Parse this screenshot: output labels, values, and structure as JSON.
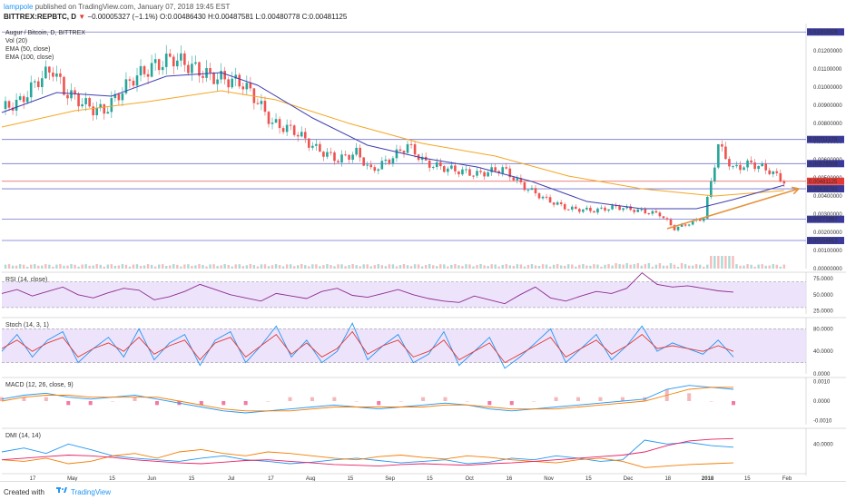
{
  "header": {
    "user": "lamppole",
    "published": "published on TradingView.com, January 07, 2018 19:45 EST",
    "symbol": "BITTREX:REPBTC, D",
    "change_arrow": "▼",
    "change": "−0.00005327 (−1.1%)",
    "o_label": "O:",
    "o": "0.00486430",
    "h_label": "H:",
    "h": "0.00487581",
    "l_label": "L:",
    "l": "0.00480778",
    "c_label": "C:",
    "c": "0.00481125"
  },
  "legend": {
    "name": "Augur / Bitcoin, D, BITTREX",
    "vol": "Vol (20)",
    "ema50": "EMA (50, close)",
    "ema100": "EMA (100, close)"
  },
  "footer": {
    "created": "Created with",
    "brand": "TradingView"
  },
  "colors": {
    "up": "#26a69a",
    "down": "#ef5350",
    "ema50": "#3f3fb0",
    "ema100": "#f5a623",
    "hline": "#5b5bc8",
    "price_label": "#e53935",
    "panel_fill": "#e6d9fb",
    "rsi": "#8e2a8e",
    "stoch_k": "#2196f3",
    "stoch_d": "#e53935",
    "macd": "#2196f3",
    "signal": "#f57c00",
    "dmi_plus": "#2196f3",
    "dmi_minus": "#f57c00",
    "adx": "#e91e63",
    "arrow": "#e69138"
  },
  "chart_data": {
    "type": "candlestick",
    "title": "Augur / Bitcoin, D, BITTREX",
    "symbol": "BITTREX:REPBTC",
    "last_close": 0.00481125,
    "y_axis_ticks": [
      "0.01200000",
      "0.01100000",
      "0.01000000",
      "0.00900000",
      "0.00800000",
      "0.00700000",
      "0.00600000",
      "0.00500000",
      "0.00400000",
      "0.00300000",
      "0.00200000",
      "0.00100000",
      "0.00000000"
    ],
    "ylim": [
      0,
      0.0135
    ],
    "x_axis_ticks": [
      "17",
      "May",
      "15",
      "Jun",
      "15",
      "Jul",
      "17",
      "Aug",
      "15",
      "Sep",
      "15",
      "Oct",
      "16",
      "Nov",
      "15",
      "Dec",
      "18",
      "2018",
      "15",
      "Feb"
    ],
    "horizontal_levels": [
      "0.01303928",
      "0.00711479",
      "0.00578508",
      "0.00481125",
      "0.00439781",
      "0.00271697",
      "0.00154813"
    ],
    "price_series": [
      {
        "t": 0,
        "v": 0.0088
      },
      {
        "t": 5,
        "v": 0.0092
      },
      {
        "t": 10,
        "v": 0.0104
      },
      {
        "t": 14,
        "v": 0.011
      },
      {
        "t": 17,
        "v": 0.0098
      },
      {
        "t": 20,
        "v": 0.0094
      },
      {
        "t": 25,
        "v": 0.0088
      },
      {
        "t": 28,
        "v": 0.0087
      },
      {
        "t": 32,
        "v": 0.0096
      },
      {
        "t": 36,
        "v": 0.0105
      },
      {
        "t": 42,
        "v": 0.0112
      },
      {
        "t": 47,
        "v": 0.0116
      },
      {
        "t": 52,
        "v": 0.0111
      },
      {
        "t": 57,
        "v": 0.0106
      },
      {
        "t": 62,
        "v": 0.0104
      },
      {
        "t": 66,
        "v": 0.0102
      },
      {
        "t": 70,
        "v": 0.0092
      },
      {
        "t": 74,
        "v": 0.008
      },
      {
        "t": 80,
        "v": 0.0076
      },
      {
        "t": 86,
        "v": 0.0066
      },
      {
        "t": 92,
        "v": 0.006
      },
      {
        "t": 97,
        "v": 0.0064
      },
      {
        "t": 101,
        "v": 0.0054
      },
      {
        "t": 106,
        "v": 0.006
      },
      {
        "t": 111,
        "v": 0.0068
      },
      {
        "t": 116,
        "v": 0.0058
      },
      {
        "t": 122,
        "v": 0.0055
      },
      {
        "t": 130,
        "v": 0.0052
      },
      {
        "t": 137,
        "v": 0.0055
      },
      {
        "t": 143,
        "v": 0.0045
      },
      {
        "t": 149,
        "v": 0.0038
      },
      {
        "t": 155,
        "v": 0.0033
      },
      {
        "t": 162,
        "v": 0.0032
      },
      {
        "t": 168,
        "v": 0.0034
      },
      {
        "t": 174,
        "v": 0.0032
      },
      {
        "t": 180,
        "v": 0.003
      },
      {
        "t": 184,
        "v": 0.0022
      },
      {
        "t": 188,
        "v": 0.0025
      },
      {
        "t": 192,
        "v": 0.0028
      },
      {
        "t": 196,
        "v": 0.0068
      },
      {
        "t": 200,
        "v": 0.0055
      },
      {
        "t": 205,
        "v": 0.0058
      },
      {
        "t": 210,
        "v": 0.0054
      },
      {
        "t": 214,
        "v": 0.0048
      }
    ],
    "ema50": [
      {
        "t": 0,
        "v": 0.0086
      },
      {
        "t": 15,
        "v": 0.0097
      },
      {
        "t": 30,
        "v": 0.0095
      },
      {
        "t": 45,
        "v": 0.0106
      },
      {
        "t": 60,
        "v": 0.0108
      },
      {
        "t": 70,
        "v": 0.0101
      },
      {
        "t": 85,
        "v": 0.0083
      },
      {
        "t": 100,
        "v": 0.0068
      },
      {
        "t": 115,
        "v": 0.0061
      },
      {
        "t": 130,
        "v": 0.0056
      },
      {
        "t": 145,
        "v": 0.0048
      },
      {
        "t": 160,
        "v": 0.0037
      },
      {
        "t": 175,
        "v": 0.0033
      },
      {
        "t": 190,
        "v": 0.0033
      },
      {
        "t": 200,
        "v": 0.0038
      },
      {
        "t": 214,
        "v": 0.0046
      }
    ],
    "ema100": [
      {
        "t": 0,
        "v": 0.0078
      },
      {
        "t": 20,
        "v": 0.0087
      },
      {
        "t": 40,
        "v": 0.0092
      },
      {
        "t": 60,
        "v": 0.0098
      },
      {
        "t": 75,
        "v": 0.0093
      },
      {
        "t": 95,
        "v": 0.008
      },
      {
        "t": 115,
        "v": 0.0069
      },
      {
        "t": 135,
        "v": 0.0062
      },
      {
        "t": 155,
        "v": 0.0051
      },
      {
        "t": 175,
        "v": 0.0044
      },
      {
        "t": 195,
        "v": 0.004
      },
      {
        "t": 214,
        "v": 0.0043
      }
    ],
    "arrow_projection": {
      "from": {
        "t": 182,
        "v": 0.0022
      },
      "to": {
        "t": 218,
        "v": 0.0044
      }
    },
    "rsi": {
      "label": "RSI (14, close)",
      "ticks": [
        "75.0000",
        "50.0000",
        "25.0000"
      ],
      "ylim": [
        20,
        85
      ],
      "band": [
        30,
        70
      ],
      "values": [
        52,
        58,
        48,
        55,
        62,
        50,
        45,
        53,
        60,
        57,
        42,
        47,
        55,
        66,
        58,
        50,
        45,
        40,
        52,
        48,
        44,
        55,
        60,
        49,
        46,
        52,
        58,
        50,
        44,
        40,
        38,
        48,
        42,
        36,
        50,
        62,
        45,
        40,
        48,
        55,
        52,
        60,
        84,
        66,
        62,
        64,
        60,
        56,
        54
      ]
    },
    "stoch": {
      "label": "Stoch (14, 3, 1)",
      "ticks": [
        "80.0000",
        "40.0000",
        "0.0000"
      ],
      "ylim": [
        0,
        100
      ],
      "band": [
        20,
        80
      ],
      "k": [
        40,
        70,
        30,
        60,
        75,
        20,
        45,
        65,
        30,
        80,
        25,
        55,
        70,
        15,
        60,
        75,
        20,
        50,
        85,
        30,
        60,
        20,
        40,
        90,
        25,
        50,
        70,
        20,
        35,
        75,
        15,
        40,
        65,
        10,
        30,
        55,
        80,
        20,
        45,
        70,
        25,
        50,
        85,
        40,
        55,
        45,
        35,
        60,
        30
      ],
      "d": [
        45,
        60,
        40,
        55,
        65,
        30,
        45,
        55,
        40,
        65,
        35,
        50,
        60,
        25,
        55,
        65,
        30,
        50,
        70,
        35,
        55,
        30,
        45,
        75,
        35,
        50,
        60,
        30,
        40,
        60,
        25,
        40,
        55,
        20,
        35,
        50,
        65,
        30,
        45,
        60,
        35,
        50,
        70,
        45,
        50,
        45,
        40,
        50,
        40
      ]
    },
    "macd": {
      "label": "MACD (12, 26, close, 9)",
      "ticks": [
        "0.0010",
        "0.0000",
        "-0.0010"
      ],
      "ylim": [
        -0.0012,
        0.0012
      ],
      "macd": [
        0.0001,
        0.0003,
        0.0004,
        0.0002,
        0.0001,
        0.0002,
        0.0003,
        0.0001,
        -0.0001,
        -0.0003,
        -0.0005,
        -0.0006,
        -0.0005,
        -0.0004,
        -0.0003,
        -0.0002,
        -0.0003,
        -0.0004,
        -0.0003,
        -0.0002,
        -0.0001,
        -0.0002,
        -0.0004,
        -0.0005,
        -0.0004,
        -0.0003,
        -0.0002,
        -0.0001,
        0.0,
        0.0001,
        0.0006,
        0.0008,
        0.0007,
        0.0006
      ],
      "signal": [
        0.0,
        0.0002,
        0.0003,
        0.0003,
        0.0002,
        0.0002,
        0.0002,
        0.0002,
        0.0,
        -0.0002,
        -0.0004,
        -0.0005,
        -0.0005,
        -0.0005,
        -0.0004,
        -0.0003,
        -0.0003,
        -0.0003,
        -0.0003,
        -0.0003,
        -0.0002,
        -0.0002,
        -0.0003,
        -0.0004,
        -0.0004,
        -0.0004,
        -0.0003,
        -0.0002,
        -0.0001,
        0.0,
        0.0003,
        0.0006,
        0.0007,
        0.0007
      ]
    },
    "dmi": {
      "label": "DMI (14, 14)",
      "ticks": [
        "40.0000"
      ],
      "ylim": [
        0,
        60
      ],
      "plus": [
        30,
        35,
        28,
        40,
        33,
        25,
        22,
        20,
        18,
        22,
        25,
        20,
        18,
        15,
        17,
        20,
        22,
        19,
        16,
        18,
        20,
        15,
        17,
        22,
        20,
        25,
        22,
        18,
        20,
        45,
        40,
        42,
        38,
        36
      ],
      "minus": [
        20,
        18,
        22,
        15,
        18,
        25,
        28,
        22,
        30,
        33,
        28,
        25,
        30,
        28,
        25,
        22,
        20,
        24,
        26,
        23,
        21,
        25,
        23,
        20,
        18,
        16,
        20,
        22,
        18,
        10,
        12,
        14,
        15,
        16
      ],
      "adx": [
        20,
        22,
        24,
        26,
        25,
        23,
        20,
        18,
        16,
        15,
        17,
        19,
        20,
        18,
        16,
        14,
        13,
        12,
        14,
        15,
        14,
        13,
        15,
        16,
        18,
        20,
        22,
        24,
        26,
        30,
        38,
        44,
        46,
        47
      ]
    }
  }
}
